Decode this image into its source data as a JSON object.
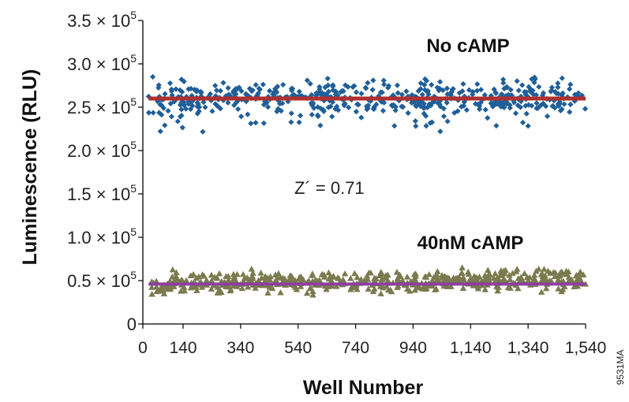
{
  "chart_data": {
    "type": "scatter",
    "title": "",
    "xlabel": "Well Number",
    "ylabel": "Luminescence (RLU)",
    "xlim": [
      0,
      1540
    ],
    "ylim": [
      0,
      350000
    ],
    "grid": false,
    "x_ticks": [
      "0",
      "140",
      "340",
      "540",
      "740",
      "940",
      "1,140",
      "1,340",
      "1,540"
    ],
    "x_tick_values": [
      0,
      140,
      340,
      540,
      740,
      940,
      1140,
      1340,
      1540
    ],
    "y_ticks": [
      {
        "value": 0,
        "mantissa": "0",
        "exponent": ""
      },
      {
        "value": 50000,
        "mantissa": "0.5 × 10",
        "exponent": "5"
      },
      {
        "value": 100000,
        "mantissa": "1.0 × 10",
        "exponent": "5"
      },
      {
        "value": 150000,
        "mantissa": "1.5 × 10",
        "exponent": "5"
      },
      {
        "value": 200000,
        "mantissa": "2.0 × 10",
        "exponent": "5"
      },
      {
        "value": 250000,
        "mantissa": "2.5 × 10",
        "exponent": "5"
      },
      {
        "value": 300000,
        "mantissa": "3.0 × 10",
        "exponent": "5"
      },
      {
        "value": 350000,
        "mantissa": "3.5 × 10",
        "exponent": "5"
      }
    ],
    "series": [
      {
        "name": "No cAMP",
        "marker": "diamond",
        "color": "#1f5f99",
        "mean": 260000,
        "mean_line_color": "#b03030",
        "x_range": [
          20,
          1540
        ],
        "y_range": [
          220000,
          285000
        ]
      },
      {
        "name": "40nM cAMP",
        "marker": "triangle",
        "color": "#7a7a4e",
        "mean": 46000,
        "mean_line_color": "#8e3fa0",
        "x_range": [
          20,
          1540
        ],
        "y_range": [
          33000,
          68000
        ]
      }
    ],
    "annotations": [
      "Z´ = 0.71"
    ],
    "figure_code": "9531MA"
  }
}
